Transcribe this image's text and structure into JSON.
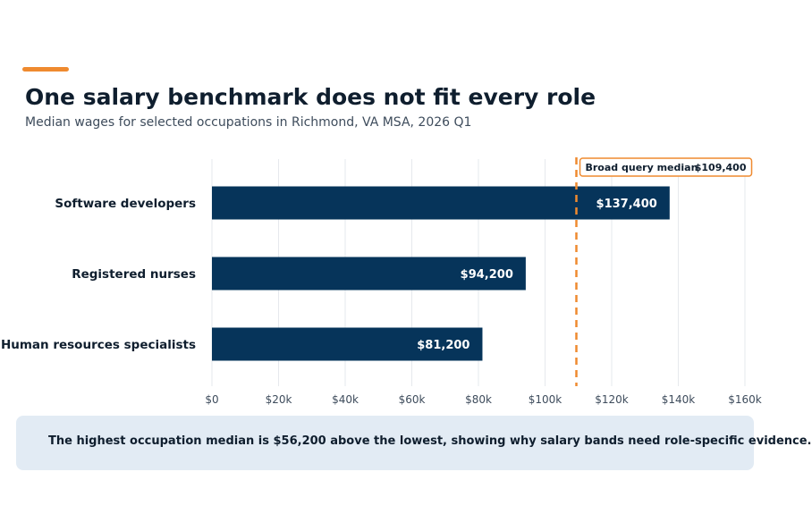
{
  "header": {
    "title": "One salary benchmark does not fit every role",
    "subtitle": "Median wages for selected occupations in Richmond, VA MSA, 2026 Q1"
  },
  "chart_data": {
    "type": "bar",
    "orientation": "horizontal",
    "categories": [
      "Software developers",
      "Registered nurses",
      "Human resources specialists"
    ],
    "values": [
      137400,
      94200,
      81200
    ],
    "value_labels": [
      "$137,400",
      "$94,200",
      "$81,200"
    ],
    "xlim": [
      0,
      160000
    ],
    "x_ticks": [
      0,
      20000,
      40000,
      60000,
      80000,
      100000,
      120000,
      140000,
      160000
    ],
    "x_tick_labels": [
      "$0",
      "$20k",
      "$40k",
      "$60k",
      "$80k",
      "$100k",
      "$120k",
      "$140k",
      "$160k"
    ],
    "grid": "vertical",
    "reference_line": {
      "value": 109400,
      "label": "Broad query median",
      "value_label": "$109,400",
      "style": "dashed"
    },
    "colors": {
      "bar": "#06345a",
      "reference": "#ef8a2f",
      "grid": "#e6e9ed"
    }
  },
  "note": {
    "text": "The highest occupation median is $56,200 above the lowest, showing why salary bands need role-specific evidence."
  }
}
